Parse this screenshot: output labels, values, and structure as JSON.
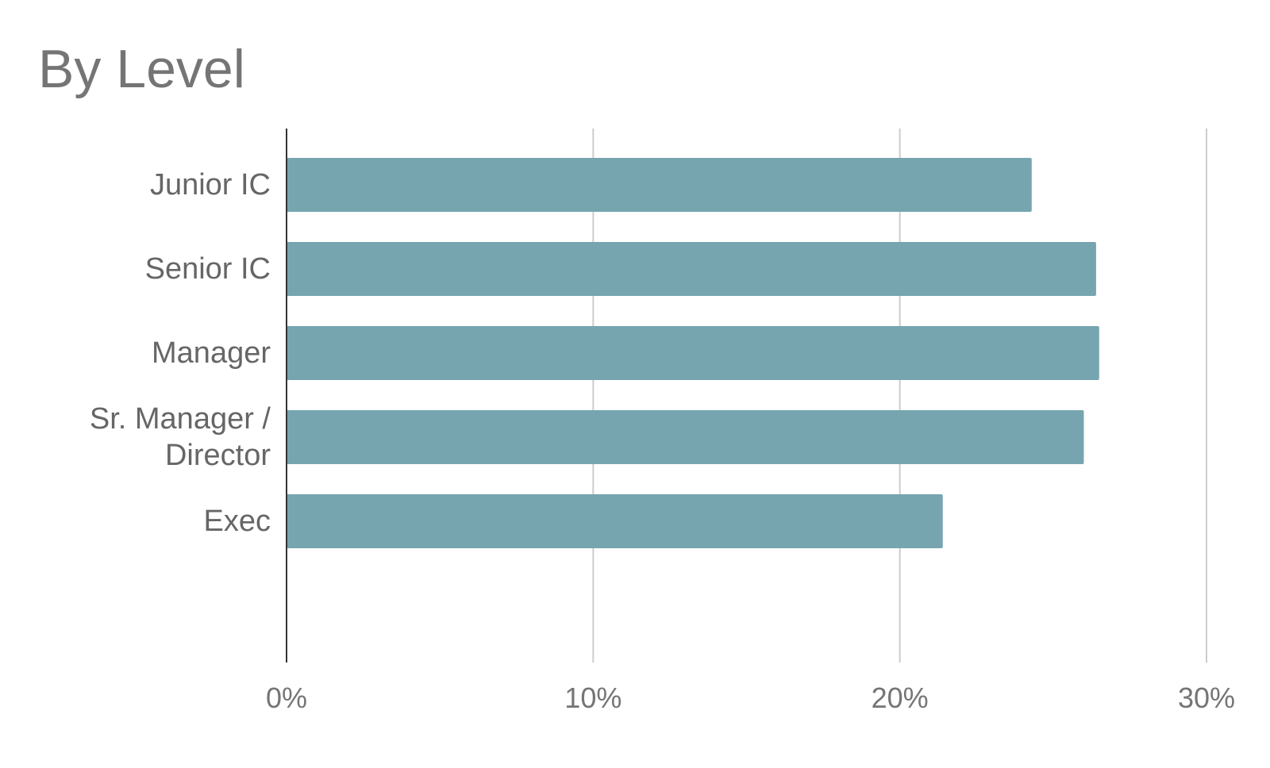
{
  "chart_data": {
    "type": "bar",
    "orientation": "horizontal",
    "title": "By Level",
    "categories": [
      "Junior IC",
      "Senior IC",
      "Manager",
      "Sr. Manager / Director",
      "Exec"
    ],
    "values": [
      24.3,
      26.4,
      26.5,
      26.0,
      21.4
    ],
    "color": "#76a5af",
    "xlim": [
      0,
      30
    ],
    "xticks": [
      {
        "value": 0,
        "label": "0%"
      },
      {
        "value": 10,
        "label": "10%"
      },
      {
        "value": 20,
        "label": "20%"
      },
      {
        "value": 30,
        "label": "30%"
      }
    ],
    "grid": true
  }
}
